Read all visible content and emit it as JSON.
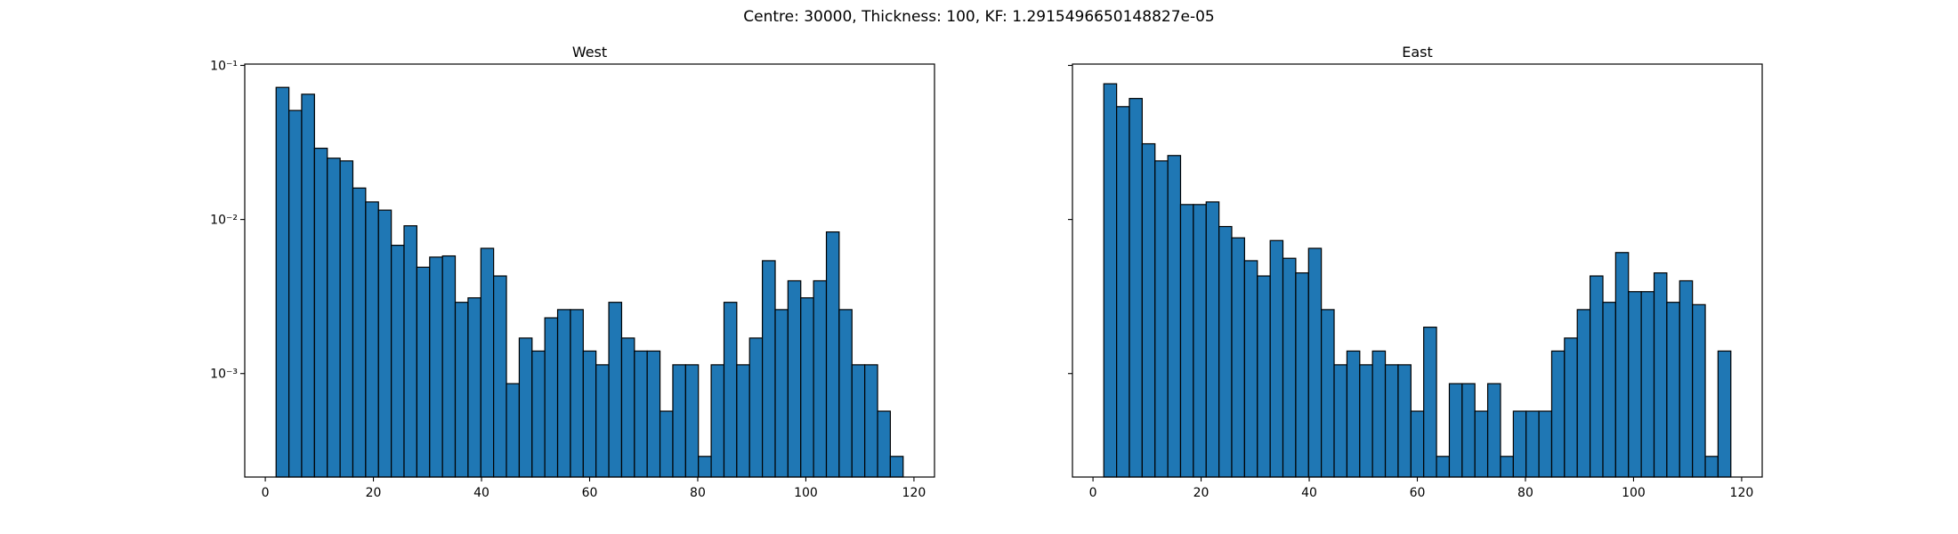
{
  "suptitle": "Centre: 30000, Thickness: 100, KF: 1.2915496650148827e-05",
  "chart_data": [
    {
      "type": "histogram",
      "title": "West",
      "color": "#1f77b4",
      "edgecolor": "#000000",
      "log_y": true,
      "bins": [
        2,
        4.37,
        6.73,
        9.1,
        11.47,
        13.84,
        16.2,
        18.57,
        20.94,
        23.31,
        25.67,
        28.04,
        30.41,
        32.78,
        35.14,
        37.51,
        39.88,
        42.24,
        44.61,
        46.98,
        49.35,
        51.71,
        54.08,
        56.45,
        58.82,
        61.18,
        63.55,
        65.92,
        68.29,
        70.65,
        73.02,
        75.39,
        77.76,
        80.12,
        82.49,
        84.86,
        87.22,
        89.59,
        91.96,
        94.33,
        96.69,
        99.06,
        101.43,
        103.8,
        106.16,
        108.53,
        110.9,
        113.27,
        115.63,
        118
      ],
      "values": [
        0.072,
        0.051,
        0.065,
        0.029,
        0.025,
        0.024,
        0.016,
        0.013,
        0.0115,
        0.0068,
        0.0091,
        0.0049,
        0.0057,
        0.0058,
        0.0029,
        0.0031,
        0.0065,
        0.0043,
        0.00086,
        0.0017,
        0.0014,
        0.0023,
        0.0026,
        0.0026,
        0.0014,
        0.00114,
        0.0029,
        0.0017,
        0.0014,
        0.0014,
        0.00057,
        0.00114,
        0.00114,
        0.00029,
        0.00114,
        0.0029,
        0.00114,
        0.0017,
        0.0054,
        0.0026,
        0.004,
        0.0031,
        0.004,
        0.0083,
        0.0026,
        0.00114,
        0.00114,
        0.00057,
        0.00029
      ],
      "xlim": [
        -3.8,
        123.8
      ],
      "xticks": [
        0,
        20,
        40,
        60,
        80,
        100,
        120
      ],
      "ylim": [
        0.000213,
        0.102
      ],
      "yticks": [
        {
          "value": 0.001,
          "label": "10⁻³"
        },
        {
          "value": 0.01,
          "label": "10⁻²"
        },
        {
          "value": 0.1,
          "label": "10⁻¹"
        }
      ]
    },
    {
      "type": "histogram",
      "title": "East",
      "color": "#1f77b4",
      "edgecolor": "#000000",
      "log_y": true,
      "bins": [
        2,
        4.37,
        6.73,
        9.1,
        11.47,
        13.84,
        16.2,
        18.57,
        20.94,
        23.31,
        25.67,
        28.04,
        30.41,
        32.78,
        35.14,
        37.51,
        39.88,
        42.24,
        44.61,
        46.98,
        49.35,
        51.71,
        54.08,
        56.45,
        58.82,
        61.18,
        63.55,
        65.92,
        68.29,
        70.65,
        73.02,
        75.39,
        77.76,
        80.12,
        82.49,
        84.86,
        87.22,
        89.59,
        91.96,
        94.33,
        96.69,
        99.06,
        101.43,
        103.8,
        106.16,
        108.53,
        110.9,
        113.27,
        115.63,
        118
      ],
      "values": [
        0.076,
        0.054,
        0.061,
        0.031,
        0.024,
        0.026,
        0.0125,
        0.0125,
        0.013,
        0.009,
        0.0076,
        0.0054,
        0.0043,
        0.0073,
        0.0056,
        0.0045,
        0.0065,
        0.0026,
        0.00114,
        0.0014,
        0.00114,
        0.0014,
        0.00114,
        0.00114,
        0.00057,
        0.002,
        0.00029,
        0.00086,
        0.00086,
        0.00057,
        0.00086,
        0.00029,
        0.00057,
        0.00057,
        0.00057,
        0.0014,
        0.0017,
        0.0026,
        0.0043,
        0.0029,
        0.0061,
        0.0034,
        0.0034,
        0.0045,
        0.0029,
        0.004,
        0.0028,
        0.00029,
        0.0014
      ],
      "xlim": [
        -3.8,
        123.8
      ],
      "xticks": [
        0,
        20,
        40,
        60,
        80,
        100,
        120
      ],
      "ylim": [
        0.000213,
        0.102
      ]
    }
  ]
}
